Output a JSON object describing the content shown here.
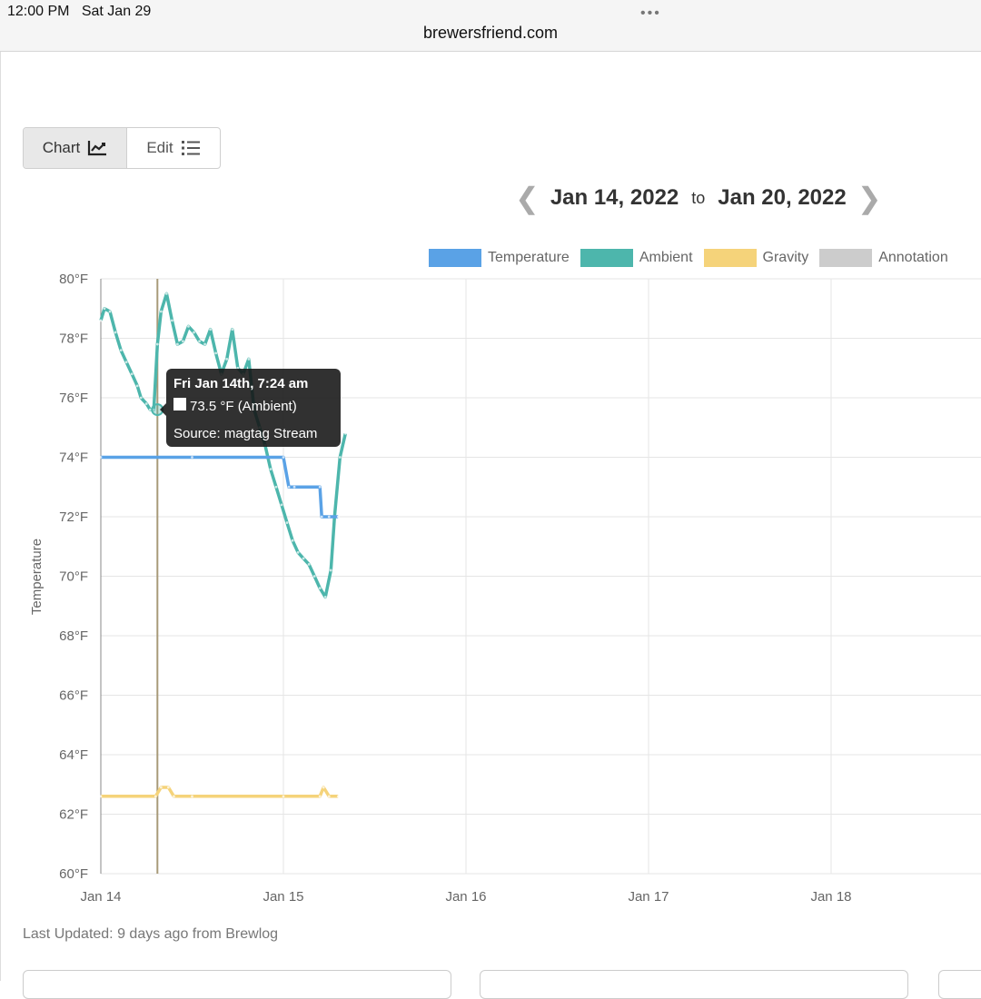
{
  "status_bar": {
    "time": "12:00 PM",
    "date": "Sat Jan 29",
    "url": "brewersfriend.com"
  },
  "view_toggle": {
    "chart_label": "Chart",
    "edit_label": "Edit"
  },
  "date_range": {
    "start": "Jan 14, 2022",
    "separator": "to",
    "end": "Jan 20, 2022"
  },
  "footer": {
    "last_updated": "Last Updated: 9 days ago from Brewlog"
  },
  "tooltip": {
    "title": "Fri Jan 14th, 7:24 am",
    "value": "73.5 °F (Ambient)",
    "source": "Source: magtag Stream"
  },
  "colors": {
    "temperature": "#5aa2e6",
    "ambient": "#4db6ac",
    "gravity": "#f5d37a",
    "annotation": "#cccccc"
  },
  "chart_data": {
    "type": "line",
    "ylabel": "Temperature",
    "ylim": [
      60,
      80
    ],
    "yticks": [
      "60°F",
      "62°F",
      "64°F",
      "66°F",
      "68°F",
      "70°F",
      "72°F",
      "74°F",
      "76°F",
      "78°F",
      "80°F"
    ],
    "x_ticks": [
      "Jan 14",
      "Jan 15",
      "Jan 16",
      "Jan 17",
      "Jan 18"
    ],
    "legend": [
      "Temperature",
      "Ambient",
      "Gravity",
      "Annotation"
    ],
    "legend_position": "top-right",
    "grid": true,
    "annotation_x": 0.31,
    "series": [
      {
        "name": "Ambient",
        "color": "#4db6ac",
        "x": [
          0,
          0.02,
          0.05,
          0.08,
          0.11,
          0.14,
          0.17,
          0.2,
          0.22,
          0.25,
          0.27,
          0.29,
          0.31,
          0.33,
          0.36,
          0.39,
          0.42,
          0.45,
          0.48,
          0.51,
          0.54,
          0.57,
          0.6,
          0.63,
          0.66,
          0.69,
          0.72,
          0.75,
          0.78,
          0.81,
          0.84,
          0.87,
          0.9,
          0.93,
          0.96,
          0.99,
          1.02,
          1.05,
          1.08,
          1.11,
          1.14,
          1.17,
          1.2,
          1.23,
          1.26,
          1.28,
          1.31,
          1.34
        ],
        "y": [
          78.6,
          79.0,
          78.9,
          78.2,
          77.6,
          77.2,
          76.8,
          76.4,
          76.0,
          75.8,
          75.6,
          75.6,
          77.8,
          78.9,
          79.5,
          78.6,
          77.8,
          77.9,
          78.4,
          78.2,
          77.9,
          77.8,
          78.3,
          77.5,
          76.8,
          77.3,
          78.3,
          77.0,
          76.8,
          77.3,
          75.6,
          75.0,
          74.4,
          73.6,
          73.0,
          72.4,
          71.8,
          71.2,
          70.8,
          70.6,
          70.4,
          70.0,
          69.6,
          69.3,
          70.2,
          72.0,
          74.0,
          74.8
        ]
      },
      {
        "name": "Temperature",
        "color": "#5aa2e6",
        "x": [
          0,
          0.5,
          1.0,
          1.03,
          1.06,
          1.2,
          1.21,
          1.25,
          1.3
        ],
        "y": [
          74,
          74,
          74,
          73,
          73,
          73,
          72,
          72,
          72
        ]
      },
      {
        "name": "Gravity",
        "color": "#f5d37a",
        "x": [
          0,
          0.3,
          0.33,
          0.37,
          0.4,
          0.5,
          1.0,
          1.2,
          1.22,
          1.25,
          1.3
        ],
        "y": [
          62.6,
          62.6,
          62.9,
          62.9,
          62.6,
          62.6,
          62.6,
          62.6,
          62.9,
          62.6,
          62.6
        ]
      }
    ]
  }
}
